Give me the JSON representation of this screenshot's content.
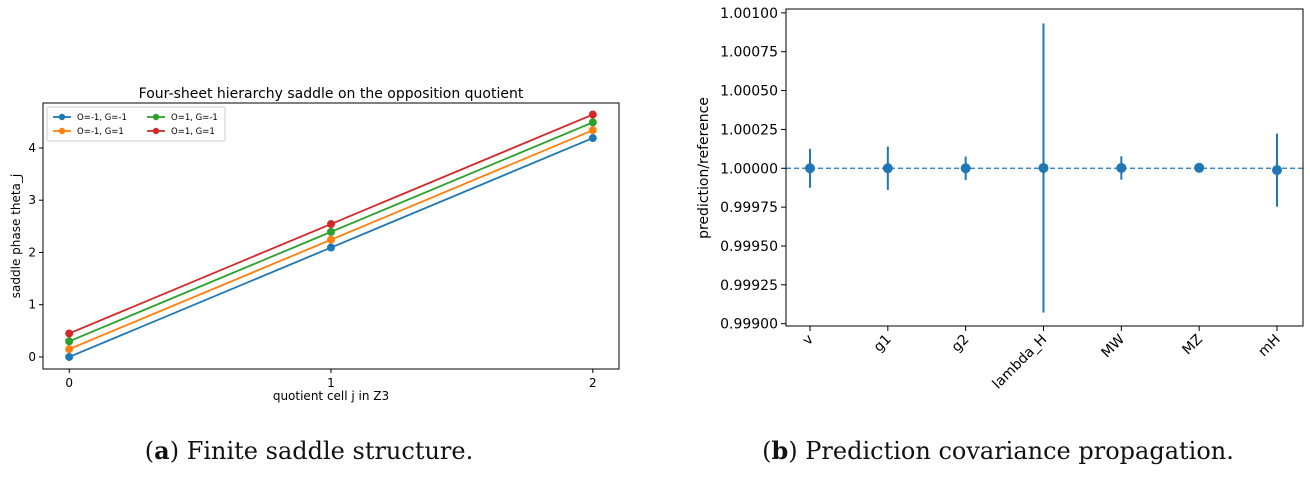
{
  "figure": {
    "caption_a": {
      "label": "a",
      "text": " Finite saddle structure."
    },
    "caption_b": {
      "label": "b",
      "text": " Prediction covariance propagation."
    }
  },
  "chart_data": [
    {
      "type": "line",
      "title": "Four-sheet hierarchy saddle on the opposition quotient",
      "xlabel": "quotient cell j in Z3",
      "ylabel": "saddle phase theta_j",
      "x": [
        0,
        1,
        2
      ],
      "xticks": [
        "0",
        "1",
        "2"
      ],
      "yticks": [
        "0",
        "1",
        "2",
        "3",
        "4"
      ],
      "xlim": [
        -0.1,
        2.1
      ],
      "ylim": [
        -0.23,
        4.86
      ],
      "grid": false,
      "legend_position": "top-left",
      "legend_columns": 2,
      "series": [
        {
          "name": "O=-1, G=-1",
          "color": "#1f77b4",
          "values": [
            0.0,
            2.094,
            4.189
          ]
        },
        {
          "name": "O=-1, G=1",
          "color": "#ff7f0e",
          "values": [
            0.15,
            2.244,
            4.339
          ]
        },
        {
          "name": "O=1, G=-1",
          "color": "#2ca02c",
          "values": [
            0.3,
            2.394,
            4.489
          ]
        },
        {
          "name": "O=1, G=1",
          "color": "#d62728",
          "values": [
            0.45,
            2.544,
            4.639
          ]
        }
      ]
    },
    {
      "type": "scatter",
      "title": "",
      "xlabel": "",
      "ylabel": "prediction/reference",
      "categories": [
        "v",
        "g1",
        "g2",
        "lambda_H",
        "MW",
        "MZ",
        "mH"
      ],
      "values": [
        1.0,
        1.0,
        1.0,
        1.000002,
        1.000002,
        1.000003,
        0.999988
      ],
      "errors": [
        0.000125,
        0.00014,
        7.5e-05,
        0.00093,
        7.5e-05,
        1e-05,
        0.000235
      ],
      "yticks": [
        "0.99900",
        "0.99925",
        "0.99950",
        "0.99975",
        "1.00000",
        "1.00025",
        "1.00050",
        "1.00075",
        "1.00100"
      ],
      "ylim": [
        0.998985,
        1.001025
      ],
      "reference_line": 1.0,
      "color": "#1f77b4",
      "grid": false
    }
  ]
}
